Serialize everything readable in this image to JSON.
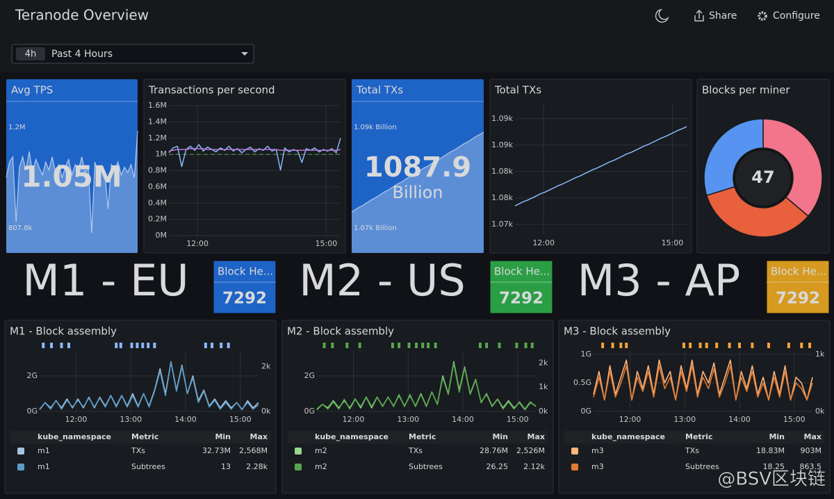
{
  "header": {
    "title": "Teranode Overview",
    "share": "Share",
    "configure": "Configure"
  },
  "time_picker": {
    "badge": "4h",
    "label": "Past 4 Hours"
  },
  "avg_tps": {
    "title": "Avg TPS",
    "value": {
      "value": 1.05,
      "label": "1.05M"
    },
    "max": {
      "value": 1.2,
      "label": "1.2M"
    },
    "min": {
      "value": 0.8078,
      "label": "807.8k"
    },
    "color": "#1e63c6"
  },
  "tps_chart": {
    "type": "line",
    "title": "Transactions per second",
    "x": [
      680,
      686,
      692,
      698,
      704,
      710,
      716,
      722,
      728,
      734,
      740,
      746,
      752,
      758,
      764,
      770,
      776,
      782,
      788,
      794,
      800,
      806,
      812,
      818,
      824,
      830,
      836,
      842,
      848,
      854,
      860,
      866,
      872,
      878,
      884,
      890,
      896,
      902,
      908,
      914,
      920
    ],
    "xlim": [
      680,
      920
    ],
    "xticks": [
      {
        "value": 720,
        "label": "12:00"
      },
      {
        "value": 900,
        "label": "15:00"
      }
    ],
    "ylim": [
      0,
      1.6
    ],
    "yticks": [
      {
        "value": 0,
        "label": "0M"
      },
      {
        "value": 0.2,
        "label": "0.2M"
      },
      {
        "value": 0.4,
        "label": "0.4M"
      },
      {
        "value": 0.6,
        "label": "0.6M"
      },
      {
        "value": 0.8,
        "label": "0.8M"
      },
      {
        "value": 1,
        "label": "1M"
      },
      {
        "value": 1.2,
        "label": "1.2M"
      },
      {
        "value": 1.4,
        "label": "1.4M"
      },
      {
        "value": 1.6,
        "label": "1.6M"
      }
    ],
    "threshold": 1,
    "threshold_color": "#56a64b",
    "series": [
      {
        "color": "#8ab8ff",
        "values": [
          1.02,
          1.08,
          1.1,
          0.85,
          1.06,
          1.1,
          1.05,
          1.12,
          1.04,
          1.09,
          1.06,
          1.03,
          1.08,
          1.05,
          1.1,
          1.04,
          1.07,
          1.02,
          1.06,
          1.09,
          1.03,
          1.07,
          1.05,
          1.1,
          1.04,
          1.06,
          0.8078,
          1.08,
          1.03,
          1.06,
          1.04,
          0.9,
          1.07,
          1.05,
          1.08,
          1.03,
          1.06,
          1.04,
          1.07,
          1.02,
          1.2
        ]
      },
      {
        "color": "#b877d9",
        "values": [
          1.04,
          1.05,
          1.06,
          1.06,
          1.06,
          1.07,
          1.07,
          1.07,
          1.07,
          1.06,
          1.06,
          1.06,
          1.06,
          1.06,
          1.06,
          1.06,
          1.06,
          1.06,
          1.06,
          1.06,
          1.06,
          1.06,
          1.06,
          1.06,
          1.06,
          1.06,
          1.05,
          1.05,
          1.05,
          1.05,
          1.05,
          1.05,
          1.05,
          1.05,
          1.05,
          1.05,
          1.05,
          1.05,
          1.05,
          1.05,
          1.06
        ]
      }
    ]
  },
  "total_txs_stat": {
    "title": "Total TXs",
    "value": 1087.9,
    "unit": "Billion",
    "max": {
      "value": 1088.5,
      "label": "1.09k Billion"
    },
    "min": {
      "value": 1073.5,
      "label": "1.07k Billion"
    },
    "color": "#1e63c6"
  },
  "total_txs_chart": {
    "type": "line",
    "title": "Total TXs",
    "x": [
      680,
      686,
      692,
      698,
      704,
      710,
      716,
      722,
      728,
      734,
      740,
      746,
      752,
      758,
      764,
      770,
      776,
      782,
      788,
      794,
      800,
      806,
      812,
      818,
      824,
      830,
      836,
      842,
      848,
      854,
      860,
      866,
      872,
      878,
      884,
      890,
      896,
      902,
      908,
      914,
      920
    ],
    "xlim": [
      680,
      920
    ],
    "xticks": [
      {
        "value": 720,
        "label": "12:00"
      },
      {
        "value": 900,
        "label": "15:00"
      }
    ],
    "ylim": [
      1068,
      1093
    ],
    "yticks": [
      {
        "value": 1070,
        "label": "1.07k"
      },
      {
        "value": 1075,
        "label": "1.08k"
      },
      {
        "value": 1080,
        "label": "1.08k"
      },
      {
        "value": 1085,
        "label": "1.09k"
      },
      {
        "value": 1090,
        "label": "1.09k"
      }
    ],
    "color": "#8ab8ff",
    "values": [
      1073.5,
      1073.9,
      1074.3,
      1074.6,
      1075.0,
      1075.4,
      1075.8,
      1076.1,
      1076.5,
      1076.9,
      1077.3,
      1077.6,
      1078.0,
      1078.4,
      1078.8,
      1079.1,
      1079.5,
      1079.9,
      1080.3,
      1080.6,
      1081.0,
      1081.4,
      1081.8,
      1082.1,
      1082.5,
      1082.9,
      1083.3,
      1083.6,
      1084.0,
      1084.4,
      1084.8,
      1085.1,
      1085.5,
      1085.9,
      1086.3,
      1086.6,
      1087.0,
      1087.4,
      1087.8,
      1088.1,
      1088.5
    ]
  },
  "blocks_per_miner": {
    "type": "pie",
    "title": "Blocks per miner",
    "center_value": 47,
    "values": [
      17,
      16,
      14
    ],
    "colors": [
      "#f2758b",
      "#e8603c",
      "#5794f2"
    ]
  },
  "miners": [
    {
      "name": "M1 - EU",
      "color": "#2f1fd1",
      "stat_title": "Block He...",
      "block_height": 7292,
      "stat_color": "#1e63c6"
    },
    {
      "name": "M2 - US",
      "color": "#3cc85a",
      "stat_title": "Block He...",
      "block_height": 7292,
      "stat_color": "#2b9e45"
    },
    {
      "name": "M3 - AP",
      "color": "#f07b1d",
      "stat_title": "Block He...",
      "block_height": 7292,
      "stat_color": "#d69a20"
    }
  ],
  "block_assembly": [
    {
      "type": "line",
      "title": "M1 - Block assembly",
      "annotation_color": "#8ab8ff",
      "x": [
        680,
        686,
        692,
        698,
        704,
        710,
        716,
        722,
        728,
        734,
        740,
        746,
        752,
        758,
        764,
        770,
        776,
        782,
        788,
        794,
        800,
        806,
        812,
        818,
        824,
        830,
        836,
        842,
        848,
        854,
        860,
        866,
        872,
        878,
        884,
        890,
        896,
        902,
        908,
        914,
        920
      ],
      "xlim": [
        680,
        920
      ],
      "xticks": [
        {
          "value": 720,
          "label": "12:00"
        },
        {
          "value": 780,
          "label": "13:00"
        },
        {
          "value": 840,
          "label": "14:00"
        },
        {
          "value": 900,
          "label": "15:00"
        }
      ],
      "ylim": [
        0,
        3.4
      ],
      "yticks": [
        {
          "value": 0,
          "label": "0G"
        },
        {
          "value": 2,
          "label": "2G"
        }
      ],
      "y2lim": [
        0,
        2.7
      ],
      "y2ticks": [
        {
          "value": 0,
          "label": "0k"
        },
        {
          "value": 2,
          "label": "2k"
        }
      ],
      "annotations": [
        684,
        693,
        704,
        712,
        764,
        769,
        781,
        787,
        793,
        799,
        806,
        862,
        869,
        879,
        887
      ],
      "series": [
        {
          "color": "#a6c4e0",
          "values": [
            0.1,
            0.5,
            0.2,
            0.6,
            0.2,
            0.7,
            0.2,
            0.7,
            0.2,
            0.8,
            0.2,
            0.8,
            0.3,
            0.9,
            0.3,
            0.9,
            0.3,
            1.0,
            0.3,
            1.0,
            0.3,
            1.2,
            2.4,
            1.0,
            2.8,
            1.2,
            2.6,
            1.0,
            2.0,
            0.6,
            1.2,
            0.3,
            0.7,
            0.2,
            0.6,
            0.2,
            0.5,
            0.1,
            0.6,
            0.2,
            0.5
          ]
        },
        {
          "color": "#5b9bc8",
          "axis": "y2",
          "values": [
            0.1,
            0.4,
            0.1,
            0.5,
            0.1,
            0.5,
            0.2,
            0.5,
            0.2,
            0.6,
            0.2,
            0.6,
            0.2,
            0.7,
            0.2,
            0.7,
            0.2,
            0.7,
            0.2,
            0.8,
            0.2,
            0.9,
            1.8,
            0.7,
            2.2,
            0.9,
            2.0,
            0.8,
            1.5,
            0.4,
            0.9,
            0.2,
            0.5,
            0.1,
            0.4,
            0.1,
            0.4,
            0.1,
            0.4,
            0.1,
            0.3
          ]
        }
      ],
      "table": {
        "columns": [
          "kube_namespace",
          "Metric",
          "Min",
          "Max"
        ],
        "rows": [
          [
            "m1",
            "TXs",
            "32.73M",
            "2,568M"
          ],
          [
            "m1",
            "Subtrees",
            "13",
            "2.28k"
          ]
        ]
      }
    },
    {
      "type": "line",
      "title": "M2 - Block assembly",
      "annotation_color": "#56a64b",
      "x": [
        680,
        686,
        692,
        698,
        704,
        710,
        716,
        722,
        728,
        734,
        740,
        746,
        752,
        758,
        764,
        770,
        776,
        782,
        788,
        794,
        800,
        806,
        812,
        818,
        824,
        830,
        836,
        842,
        848,
        854,
        860,
        866,
        872,
        878,
        884,
        890,
        896,
        902,
        908,
        914,
        920
      ],
      "xlim": [
        680,
        920
      ],
      "xticks": [
        {
          "value": 720,
          "label": "12:00"
        },
        {
          "value": 780,
          "label": "13:00"
        },
        {
          "value": 840,
          "label": "14:00"
        },
        {
          "value": 900,
          "label": "15:00"
        }
      ],
      "ylim": [
        0,
        3.4
      ],
      "yticks": [
        {
          "value": 0,
          "label": "0G"
        },
        {
          "value": 2,
          "label": "2G"
        }
      ],
      "y2lim": [
        0,
        2.5
      ],
      "y2ticks": [
        {
          "value": 0,
          "label": "0k"
        },
        {
          "value": 1,
          "label": "1k"
        },
        {
          "value": 2,
          "label": "2k"
        }
      ],
      "annotations": [
        688,
        697,
        713,
        727,
        763,
        770,
        781,
        789,
        796,
        802,
        810,
        859,
        866,
        880,
        899,
        909,
        916
      ],
      "series": [
        {
          "color": "#96d98d",
          "values": [
            0.1,
            0.4,
            0.2,
            0.6,
            0.2,
            0.6,
            0.2,
            0.7,
            0.2,
            0.8,
            0.2,
            0.8,
            0.3,
            0.8,
            0.3,
            0.9,
            0.3,
            0.9,
            0.3,
            1.0,
            0.3,
            1.1,
            0.4,
            2.0,
            1.0,
            2.8,
            1.2,
            2.5,
            1.0,
            1.8,
            0.5,
            1.0,
            0.3,
            0.7,
            0.2,
            0.6,
            0.2,
            0.5,
            0.1,
            0.5,
            0.3
          ]
        },
        {
          "color": "#56a64b",
          "axis": "y2",
          "values": [
            0.1,
            0.3,
            0.1,
            0.4,
            0.1,
            0.5,
            0.1,
            0.5,
            0.2,
            0.6,
            0.2,
            0.6,
            0.2,
            0.6,
            0.2,
            0.7,
            0.2,
            0.7,
            0.2,
            0.7,
            0.2,
            0.8,
            0.3,
            1.4,
            0.7,
            2.0,
            0.8,
            1.8,
            0.7,
            1.3,
            0.4,
            0.7,
            0.2,
            0.5,
            0.1,
            0.4,
            0.1,
            0.4,
            0.1,
            0.4,
            0.2
          ]
        }
      ],
      "table": {
        "columns": [
          "kube_namespace",
          "Metric",
          "Min",
          "Max"
        ],
        "rows": [
          [
            "m2",
            "TXs",
            "28.76M",
            "2,526M"
          ],
          [
            "m2",
            "Subtrees",
            "26.25",
            "2.12k"
          ]
        ]
      }
    },
    {
      "type": "line",
      "title": "M3 - Block assembly",
      "annotation_color": "#f2a33a",
      "x": [
        680,
        686,
        692,
        698,
        704,
        710,
        716,
        722,
        728,
        734,
        740,
        746,
        752,
        758,
        764,
        770,
        776,
        782,
        788,
        794,
        800,
        806,
        812,
        818,
        824,
        830,
        836,
        842,
        848,
        854,
        860,
        866,
        872,
        878,
        884,
        890,
        896,
        902,
        908,
        914,
        920
      ],
      "xlim": [
        680,
        920
      ],
      "xticks": [
        {
          "value": 720,
          "label": "12:00"
        },
        {
          "value": 780,
          "label": "13:00"
        },
        {
          "value": 840,
          "label": "14:00"
        },
        {
          "value": 900,
          "label": "15:00"
        }
      ],
      "ylim": [
        0,
        1.06
      ],
      "yticks": [
        {
          "value": 0,
          "label": "0G"
        },
        {
          "value": 0.5,
          "label": "0.5G"
        },
        {
          "value": 1,
          "label": "1G"
        }
      ],
      "y2lim": [
        0,
        1.06
      ],
      "y2ticks": [
        {
          "value": 0,
          "label": "0k"
        },
        {
          "value": 1,
          "label": "1k"
        }
      ],
      "annotations": [
        690,
        701,
        710,
        716,
        779,
        786,
        797,
        804,
        815,
        829,
        840,
        854,
        872,
        894,
        908,
        917
      ],
      "series": [
        {
          "color": "#ffb47a",
          "values": [
            0.3,
            0.7,
            0.2,
            0.8,
            0.3,
            0.6,
            0.9,
            0.2,
            0.7,
            0.4,
            0.8,
            0.3,
            0.9,
            0.5,
            0.7,
            0.2,
            0.8,
            0.4,
            0.9,
            0.3,
            0.7,
            0.5,
            0.85,
            0.3,
            0.6,
            0.9,
            0.2,
            0.7,
            0.4,
            0.8,
            0.3,
            0.6,
            0.2,
            0.7,
            0.3,
            0.8,
            0.2,
            0.6,
            0.5,
            0.2,
            0.6
          ]
        },
        {
          "color": "#e07a32",
          "axis": "y2",
          "values": [
            0.25,
            0.6,
            0.2,
            0.7,
            0.25,
            0.5,
            0.8,
            0.2,
            0.6,
            0.35,
            0.7,
            0.25,
            0.8,
            0.4,
            0.6,
            0.2,
            0.7,
            0.35,
            0.8,
            0.25,
            0.6,
            0.4,
            0.75,
            0.25,
            0.5,
            0.8,
            0.2,
            0.6,
            0.35,
            0.7,
            0.25,
            0.5,
            0.2,
            0.6,
            0.25,
            0.7,
            0.2,
            0.5,
            0.4,
            0.2,
            0.5
          ]
        }
      ],
      "table": {
        "columns": [
          "kube_namespace",
          "Metric",
          "Min",
          "Max"
        ],
        "rows": [
          [
            "m3",
            "TXs",
            "18.83M",
            "903M"
          ],
          [
            "m3",
            "Subtrees",
            "18.25",
            "863.5"
          ]
        ]
      }
    }
  ],
  "watermark": "@BSV区块链"
}
